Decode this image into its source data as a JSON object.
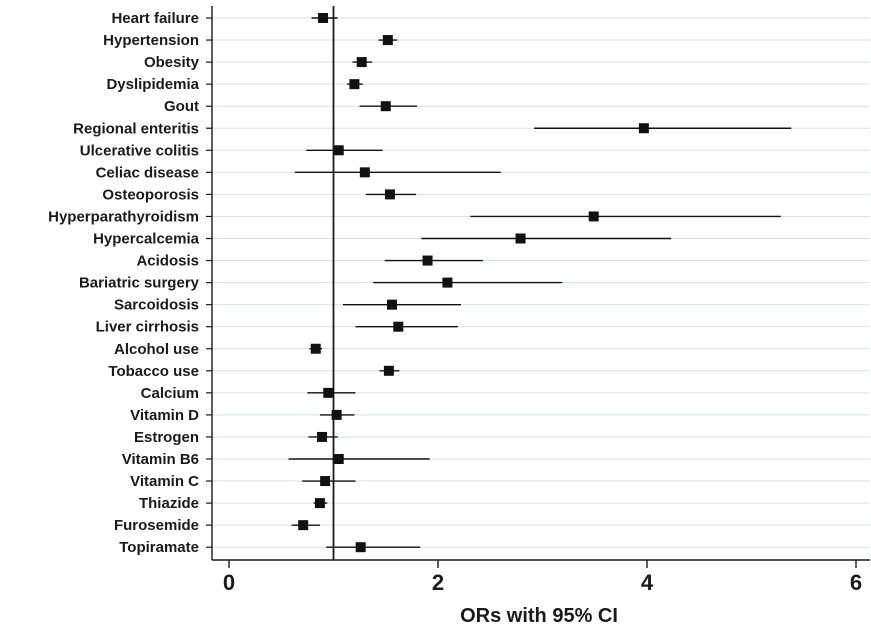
{
  "chart_data": {
    "type": "forest",
    "title": "",
    "xlabel": "ORs with 95% CI",
    "ylabel": "",
    "xlim": [
      0,
      6.05
    ],
    "xticks": [
      0,
      2,
      4,
      6
    ],
    "reference_line": 1,
    "grid": "horizontal",
    "colors": {
      "marker": "#111111",
      "grid": "#d5e2e4",
      "axis": "#1a1a1a"
    },
    "rows": [
      {
        "label": "Heart failure",
        "or": 0.9,
        "lower": 0.79,
        "upper": 1.04
      },
      {
        "label": "Hypertension",
        "or": 1.52,
        "lower": 1.43,
        "upper": 1.61
      },
      {
        "label": "Obesity",
        "or": 1.27,
        "lower": 1.18,
        "upper": 1.37
      },
      {
        "label": "Dyslipidemia",
        "or": 1.2,
        "lower": 1.13,
        "upper": 1.28
      },
      {
        "label": "Gout",
        "or": 1.5,
        "lower": 1.25,
        "upper": 1.8
      },
      {
        "label": "Regional enteritis",
        "or": 3.97,
        "lower": 2.92,
        "upper": 5.38
      },
      {
        "label": "Ulcerative colitis",
        "or": 1.05,
        "lower": 0.74,
        "upper": 1.47
      },
      {
        "label": "Celiac disease",
        "or": 1.3,
        "lower": 0.63,
        "upper": 2.6
      },
      {
        "label": "Osteoporosis",
        "or": 1.54,
        "lower": 1.31,
        "upper": 1.79
      },
      {
        "label": "Hyperparathyroidism",
        "or": 3.49,
        "lower": 2.31,
        "upper": 5.28
      },
      {
        "label": "Hypercalcemia",
        "or": 2.79,
        "lower": 1.84,
        "upper": 4.23
      },
      {
        "label": "Acidosis",
        "or": 1.9,
        "lower": 1.49,
        "upper": 2.43
      },
      {
        "label": "Bariatric surgery",
        "or": 2.09,
        "lower": 1.38,
        "upper": 3.19
      },
      {
        "label": "Sarcoidosis",
        "or": 1.56,
        "lower": 1.09,
        "upper": 2.22
      },
      {
        "label": "Liver cirrhosis",
        "or": 1.62,
        "lower": 1.21,
        "upper": 2.19
      },
      {
        "label": "Alcohol use",
        "or": 0.83,
        "lower": 0.77,
        "upper": 0.89
      },
      {
        "label": "Tobacco use",
        "or": 1.53,
        "lower": 1.44,
        "upper": 1.63
      },
      {
        "label": "Calcium",
        "or": 0.95,
        "lower": 0.75,
        "upper": 1.21
      },
      {
        "label": "Vitamin D",
        "or": 1.03,
        "lower": 0.87,
        "upper": 1.2
      },
      {
        "label": "Estrogen",
        "or": 0.89,
        "lower": 0.76,
        "upper": 1.04
      },
      {
        "label": "Vitamin B6",
        "or": 1.05,
        "lower": 0.57,
        "upper": 1.92
      },
      {
        "label": "Vitamin C",
        "or": 0.92,
        "lower": 0.7,
        "upper": 1.21
      },
      {
        "label": "Thiazide",
        "or": 0.87,
        "lower": 0.81,
        "upper": 0.94
      },
      {
        "label": "Furosemide",
        "or": 0.71,
        "lower": 0.6,
        "upper": 0.87
      },
      {
        "label": "Topiramate",
        "or": 1.26,
        "lower": 0.93,
        "upper": 1.83
      }
    ]
  }
}
